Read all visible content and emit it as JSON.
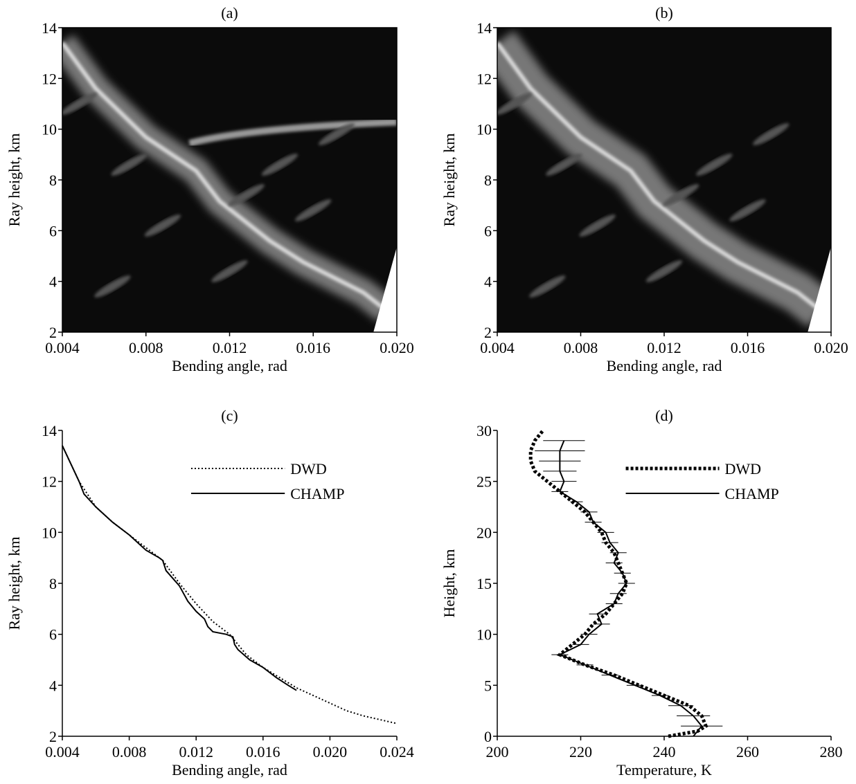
{
  "chart_data": [
    {
      "type": "image",
      "title": "(a)",
      "xlabel": "Bending angle, rad",
      "ylabel": "Ray height, km",
      "xlim": [
        0.004,
        0.02
      ],
      "xticks": [
        0.004,
        0.008,
        0.012,
        0.016,
        {
          "value": 0.02,
          "label": "0.020"
        }
      ],
      "ylim": [
        2,
        14
      ],
      "yticks": [
        2,
        4,
        6,
        8,
        10,
        12,
        14
      ]
    },
    {
      "type": "image",
      "title": "(b)",
      "xlabel": "Bending angle, rad",
      "ylabel": "Ray height, km",
      "xlim": [
        0.004,
        0.02
      ],
      "xticks": [
        0.004,
        0.008,
        0.012,
        0.016,
        {
          "value": 0.02,
          "label": "0.020"
        }
      ],
      "ylim": [
        2,
        14
      ],
      "yticks": [
        2,
        4,
        6,
        8,
        10,
        12,
        14
      ]
    },
    {
      "type": "line",
      "title": "(c)",
      "xlabel": "Bending angle, rad",
      "ylabel": "Ray height, km",
      "xlim": [
        0.004,
        0.024
      ],
      "xticks": [
        0.004,
        0.008,
        0.012,
        0.016,
        {
          "value": 0.02,
          "label": "0.020"
        },
        0.024
      ],
      "ylim": [
        2,
        14
      ],
      "yticks": [
        2,
        4,
        6,
        8,
        10,
        12,
        14
      ],
      "legend": "upper right",
      "series": [
        {
          "name": "DWD",
          "color": "#000000",
          "style": "dotted",
          "width": 2,
          "x": [
            0.004,
            0.005,
            0.006,
            0.007,
            0.008,
            0.009,
            0.01,
            0.011,
            0.012,
            0.013,
            0.014,
            0.015,
            0.016,
            0.017,
            0.018,
            0.019,
            0.02,
            0.021,
            0.022,
            0.023,
            0.024
          ],
          "values": [
            13.4,
            12.0,
            11.0,
            10.4,
            9.9,
            9.4,
            8.9,
            8.0,
            7.2,
            6.5,
            6.0,
            5.2,
            4.7,
            4.3,
            3.9,
            3.6,
            3.3,
            3.0,
            2.8,
            2.65,
            2.5
          ]
        },
        {
          "name": "CHAMP",
          "color": "#000000",
          "style": "solid",
          "width": 2,
          "x": [
            0.004,
            0.005,
            0.0053,
            0.006,
            0.007,
            0.008,
            0.009,
            0.0098,
            0.01,
            0.0102,
            0.011,
            0.0115,
            0.012,
            0.0125,
            0.0127,
            0.013,
            0.0138,
            0.0142,
            0.0143,
            0.0145,
            0.0152,
            0.016,
            0.0168,
            0.0175,
            0.018
          ],
          "values": [
            13.4,
            12.0,
            11.5,
            11.0,
            10.4,
            9.9,
            9.3,
            9.0,
            8.9,
            8.5,
            7.9,
            7.3,
            6.9,
            6.6,
            6.3,
            6.1,
            6.0,
            5.9,
            5.6,
            5.4,
            5.0,
            4.7,
            4.3,
            4.0,
            3.8
          ]
        }
      ]
    },
    {
      "type": "line",
      "title": "(d)",
      "xlabel": "Temperature, K",
      "ylabel": "Height, km",
      "xlim": [
        200,
        280
      ],
      "xticks": [
        200,
        220,
        240,
        260,
        280
      ],
      "ylim": [
        0,
        30
      ],
      "yticks": [
        0,
        5,
        10,
        15,
        20,
        25,
        30
      ],
      "legend": "upper right",
      "series": [
        {
          "name": "DWD",
          "color": "#000000",
          "style": "dotted",
          "width": 5,
          "x": [
            241,
            248,
            250,
            249,
            246,
            240,
            234,
            228,
            221,
            215,
            218,
            221,
            223,
            226,
            228,
            230,
            231,
            230,
            229,
            228,
            226,
            225,
            223,
            221,
            218,
            215,
            212,
            209,
            208,
            208,
            209,
            211
          ],
          "values": [
            0,
            0.5,
            1,
            2,
            3,
            4,
            5,
            6,
            7,
            8,
            9,
            10,
            11,
            12,
            13,
            14,
            15,
            16,
            17,
            18,
            19,
            20,
            21,
            22,
            23,
            24,
            25,
            26,
            27,
            28,
            29,
            30
          ]
        },
        {
          "name": "CHAMP",
          "color": "#000000",
          "style": "solid",
          "width": 2,
          "x": [
            247,
            249,
            247,
            244,
            239,
            233,
            227,
            221,
            215,
            220,
            222,
            225,
            224,
            228,
            229,
            231,
            230,
            228,
            229,
            227,
            226,
            223,
            222,
            219,
            215,
            216,
            215,
            215,
            215,
            216
          ],
          "values": [
            0,
            1,
            2,
            3,
            4,
            5,
            6,
            7,
            8,
            9,
            10,
            11,
            12,
            13,
            14,
            15,
            16,
            17,
            18,
            19,
            20,
            21,
            22,
            23,
            24,
            25,
            26,
            27,
            28,
            29
          ],
          "xerr": [
            6,
            5,
            4,
            3,
            2,
            2,
            2,
            2,
            2,
            2,
            2,
            2,
            2,
            2,
            2,
            2,
            2,
            2,
            2,
            2,
            2,
            2,
            2,
            1.5,
            2,
            3,
            4,
            5,
            6,
            5
          ]
        }
      ]
    }
  ]
}
